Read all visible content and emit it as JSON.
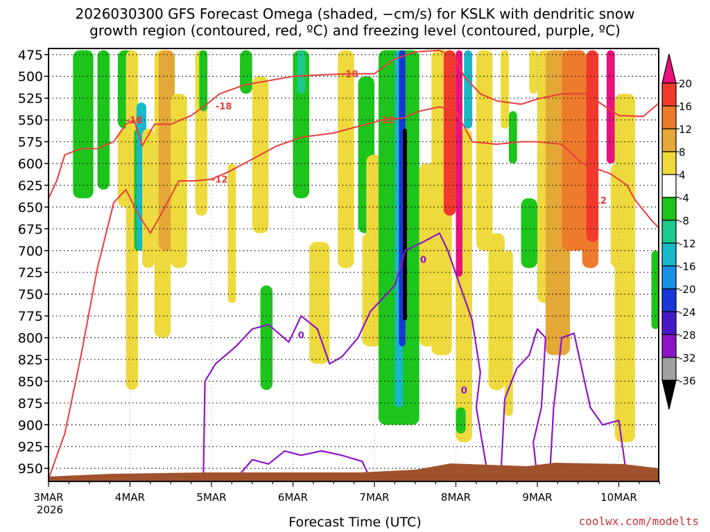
{
  "title_lines": [
    "2026030300 GFS Forecast Omega (shaded, −cm/s) for KSLK with dendritic snow",
    "growth region (contoured, red, ºC) and freezing level (contoured, purple, ºC)"
  ],
  "credit": "coolwx.com/modelts",
  "chart_data": {
    "type": "heatmap",
    "xlabel": "Forecast Time (UTC)",
    "x_ticks": [
      "3MAR",
      "4MAR",
      "5MAR",
      "6MAR",
      "7MAR",
      "8MAR",
      "9MAR",
      "10MAR"
    ],
    "x_tick_sub": "2026",
    "x_range_days": [
      0,
      7.5
    ],
    "y_ticks": [
      475,
      500,
      525,
      550,
      575,
      600,
      625,
      650,
      675,
      700,
      725,
      750,
      775,
      800,
      825,
      850,
      875,
      900,
      925,
      950
    ],
    "y_range_hpa": [
      468,
      965
    ],
    "grid": true,
    "colorbar": {
      "labels": [
        "20",
        "16",
        "12",
        "8",
        "4",
        "-4",
        "-8",
        "-12",
        "-16",
        "-20",
        "-24",
        "-28",
        "-32",
        "-36"
      ],
      "colors": [
        "#e8127a",
        "#f03a2c",
        "#ee7b2c",
        "#e4a838",
        "#e8c43c",
        "#eeda3c",
        "#ffffff",
        "#1cc41c",
        "#1cc88c",
        "#18b8c8",
        "#1890e8",
        "#1838d8",
        "#4818c8",
        "#8c14c8",
        "#a0a0a0",
        "#000000"
      ]
    },
    "series": [
      {
        "kind": "contour",
        "color": "#e83c3c",
        "labels": [
          "-18",
          "-18",
          "-18",
          "-12",
          "-12",
          "-12"
        ]
      },
      {
        "kind": "contour",
        "color": "#8c14c8",
        "labels": [
          "0",
          "0",
          "0",
          "0",
          "0",
          "0",
          "0",
          "0",
          "0"
        ]
      }
    ],
    "shaded_regions": [
      {
        "x": [
          0.3,
          0.55
        ],
        "p": [
          470,
          640
        ],
        "value": -8
      },
      {
        "x": [
          0.6,
          0.75
        ],
        "p": [
          470,
          630
        ],
        "value": -8
      },
      {
        "x": [
          0.85,
          1.05
        ],
        "p": [
          470,
          560
        ],
        "value": -8
      },
      {
        "x": [
          0.85,
          1.15
        ],
        "p": [
          560,
          650
        ],
        "value": -4
      },
      {
        "x": [
          0.95,
          1.1
        ],
        "p": [
          470,
          860
        ],
        "value": -4
      },
      {
        "x": [
          1.05,
          1.15
        ],
        "p": [
          560,
          700
        ],
        "value": -8
      },
      {
        "x": [
          1.08,
          1.2
        ],
        "p": [
          530,
          700
        ],
        "value": -16
      },
      {
        "x": [
          1.15,
          1.3
        ],
        "p": [
          560,
          720
        ],
        "value": 4
      },
      {
        "x": [
          1.3,
          1.5
        ],
        "p": [
          470,
          800
        ],
        "value": 4
      },
      {
        "x": [
          1.35,
          1.55
        ],
        "p": [
          470,
          700
        ],
        "value": 8
      },
      {
        "x": [
          1.5,
          1.7
        ],
        "p": [
          520,
          720
        ],
        "value": 4
      },
      {
        "x": [
          1.8,
          1.95
        ],
        "p": [
          470,
          660
        ],
        "value": -4
      },
      {
        "x": [
          1.85,
          1.95
        ],
        "p": [
          470,
          540
        ],
        "value": -8
      },
      {
        "x": [
          2.2,
          2.3
        ],
        "p": [
          600,
          760
        ],
        "value": 4
      },
      {
        "x": [
          2.35,
          2.5
        ],
        "p": [
          470,
          520
        ],
        "value": -8
      },
      {
        "x": [
          2.5,
          2.7
        ],
        "p": [
          500,
          680
        ],
        "value": 4
      },
      {
        "x": [
          2.6,
          2.75
        ],
        "p": [
          740,
          860
        ],
        "value": -8
      },
      {
        "x": [
          3.0,
          3.2
        ],
        "p": [
          470,
          640
        ],
        "value": -8
      },
      {
        "x": [
          3.05,
          3.15
        ],
        "p": [
          470,
          520
        ],
        "value": -12
      },
      {
        "x": [
          3.2,
          3.45
        ],
        "p": [
          690,
          830
        ],
        "value": 4
      },
      {
        "x": [
          3.55,
          3.75
        ],
        "p": [
          470,
          720
        ],
        "value": 4
      },
      {
        "x": [
          3.8,
          4.0
        ],
        "p": [
          500,
          680
        ],
        "value": -8
      },
      {
        "x": [
          3.85,
          4.1
        ],
        "p": [
          680,
          810
        ],
        "value": 4
      },
      {
        "x": [
          3.9,
          4.1
        ],
        "p": [
          590,
          700
        ],
        "value": 4
      },
      {
        "x": [
          4.1,
          4.2
        ],
        "p": [
          470,
          620
        ],
        "value": -4
      },
      {
        "x": [
          4.05,
          4.55
        ],
        "p": [
          470,
          900
        ],
        "value": -8
      },
      {
        "x": [
          4.25,
          4.35
        ],
        "p": [
          470,
          880
        ],
        "value": -16
      },
      {
        "x": [
          4.3,
          4.38
        ],
        "p": [
          470,
          810
        ],
        "value": -24
      },
      {
        "x": [
          4.35,
          4.4
        ],
        "p": [
          560,
          780
        ],
        "value": -36
      },
      {
        "x": [
          4.55,
          4.75
        ],
        "p": [
          600,
          810
        ],
        "value": 4
      },
      {
        "x": [
          4.7,
          4.95
        ],
        "p": [
          470,
          820
        ],
        "value": 4
      },
      {
        "x": [
          4.85,
          5.0
        ],
        "p": [
          470,
          660
        ],
        "value": 16
      },
      {
        "x": [
          5.0,
          5.2
        ],
        "p": [
          560,
          920
        ],
        "value": 4
      },
      {
        "x": [
          5.0,
          5.08
        ],
        "p": [
          470,
          730
        ],
        "value": 20
      },
      {
        "x": [
          5.0,
          5.12
        ],
        "p": [
          880,
          910
        ],
        "value": -8
      },
      {
        "x": [
          5.1,
          5.2
        ],
        "p": [
          470,
          560
        ],
        "value": -16
      },
      {
        "x": [
          5.25,
          5.45
        ],
        "p": [
          470,
          700
        ],
        "value": 4
      },
      {
        "x": [
          5.4,
          5.6
        ],
        "p": [
          680,
          860
        ],
        "value": 4
      },
      {
        "x": [
          5.55,
          5.65
        ],
        "p": [
          470,
          560
        ],
        "value": 4
      },
      {
        "x": [
          5.6,
          5.7
        ],
        "p": [
          700,
          890
        ],
        "value": 4
      },
      {
        "x": [
          5.65,
          5.75
        ],
        "p": [
          540,
          600
        ],
        "value": -8
      },
      {
        "x": [
          5.8,
          6.0
        ],
        "p": [
          640,
          720
        ],
        "value": -8
      },
      {
        "x": [
          5.9,
          6.0
        ],
        "p": [
          470,
          520
        ],
        "value": 4
      },
      {
        "x": [
          6.0,
          6.2
        ],
        "p": [
          470,
          760
        ],
        "value": 4
      },
      {
        "x": [
          6.1,
          6.4
        ],
        "p": [
          470,
          820
        ],
        "value": 8
      },
      {
        "x": [
          6.3,
          6.6
        ],
        "p": [
          470,
          700
        ],
        "value": 12
      },
      {
        "x": [
          6.55,
          6.75
        ],
        "p": [
          540,
          720
        ],
        "value": 12
      },
      {
        "x": [
          6.6,
          6.75
        ],
        "p": [
          470,
          690
        ],
        "value": 16
      },
      {
        "x": [
          6.85,
          6.95
        ],
        "p": [
          470,
          600
        ],
        "value": 20
      },
      {
        "x": [
          6.9,
          7.1
        ],
        "p": [
          600,
          720
        ],
        "value": 4
      },
      {
        "x": [
          6.95,
          7.2
        ],
        "p": [
          520,
          920
        ],
        "value": 4
      },
      {
        "x": [
          7.0,
          7.1
        ],
        "p": [
          620,
          650
        ],
        "value": 4
      },
      {
        "x": [
          7.4,
          7.5
        ],
        "p": [
          700,
          790
        ],
        "value": -8
      }
    ]
  }
}
